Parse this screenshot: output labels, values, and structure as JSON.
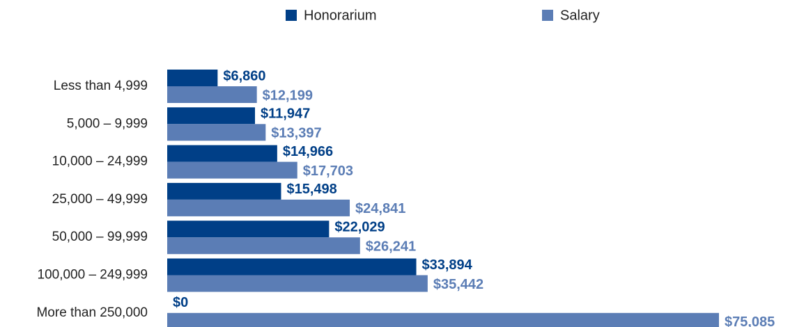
{
  "chart_data": {
    "type": "bar",
    "orientation": "horizontal",
    "categories": [
      "Less than 4,999",
      "5,000 – 9,999",
      "10,000 – 24,999",
      "25,000 – 49,999",
      "50,000 – 99,999",
      "100,000 – 249,999",
      "More than 250,000"
    ],
    "series": [
      {
        "name": "Honorarium",
        "color": "#003f87",
        "values": [
          6860,
          11947,
          14966,
          15498,
          22029,
          33894,
          0
        ],
        "value_labels": [
          "$6,860",
          "$11,947",
          "$14,966",
          "$15,498",
          "$22,029",
          "$33,894",
          "$0"
        ]
      },
      {
        "name": "Salary",
        "color": "#5b7db5",
        "values": [
          12199,
          13397,
          17703,
          24841,
          26241,
          35442,
          75085
        ],
        "value_labels": [
          "$12,199",
          "$13,397",
          "$17,703",
          "$24,841",
          "$26,241",
          "$35,442",
          "$75,085"
        ]
      }
    ],
    "legend": "top"
  }
}
